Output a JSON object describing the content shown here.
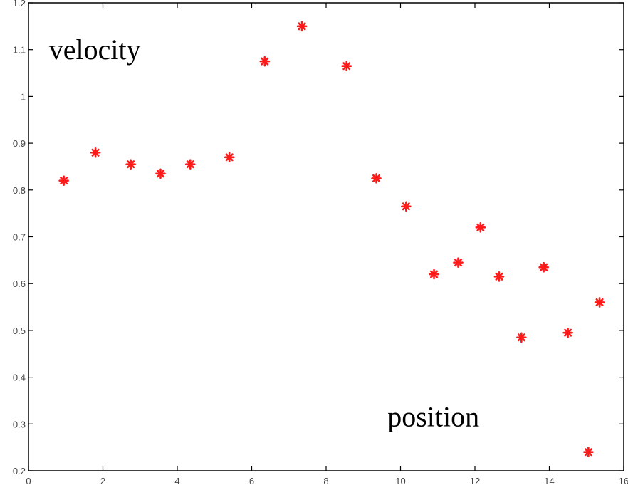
{
  "chart_data": {
    "type": "scatter",
    "title": "",
    "xlabel": "",
    "ylabel": "",
    "xlim": [
      0,
      16
    ],
    "ylim": [
      0.2,
      1.2
    ],
    "xticks": [
      0,
      2,
      4,
      6,
      8,
      10,
      12,
      14,
      16
    ],
    "yticks": [
      0.2,
      0.3,
      0.4,
      0.5,
      0.6,
      0.7,
      0.8,
      0.9,
      1,
      1.1,
      1.2
    ],
    "grid": false,
    "marker": "asterisk",
    "marker_color": "#ff1a1a",
    "annotations": [
      {
        "text": "velocity",
        "x": 0.55,
        "y": 1.08
      },
      {
        "text": "position",
        "x": 9.65,
        "y": 0.295
      }
    ],
    "series": [
      {
        "x": [
          0.95,
          1.8,
          2.75,
          3.55,
          4.35,
          5.4,
          6.35,
          7.35,
          8.55,
          9.35,
          10.15,
          10.9,
          11.55,
          12.15,
          12.65,
          13.25,
          13.85,
          14.5,
          15.05,
          15.35
        ],
        "y": [
          0.82,
          0.88,
          0.855,
          0.835,
          0.855,
          0.87,
          1.075,
          1.15,
          1.065,
          0.825,
          0.765,
          0.62,
          0.645,
          0.72,
          0.615,
          0.485,
          0.635,
          0.495,
          0.24,
          0.56
        ]
      }
    ]
  }
}
